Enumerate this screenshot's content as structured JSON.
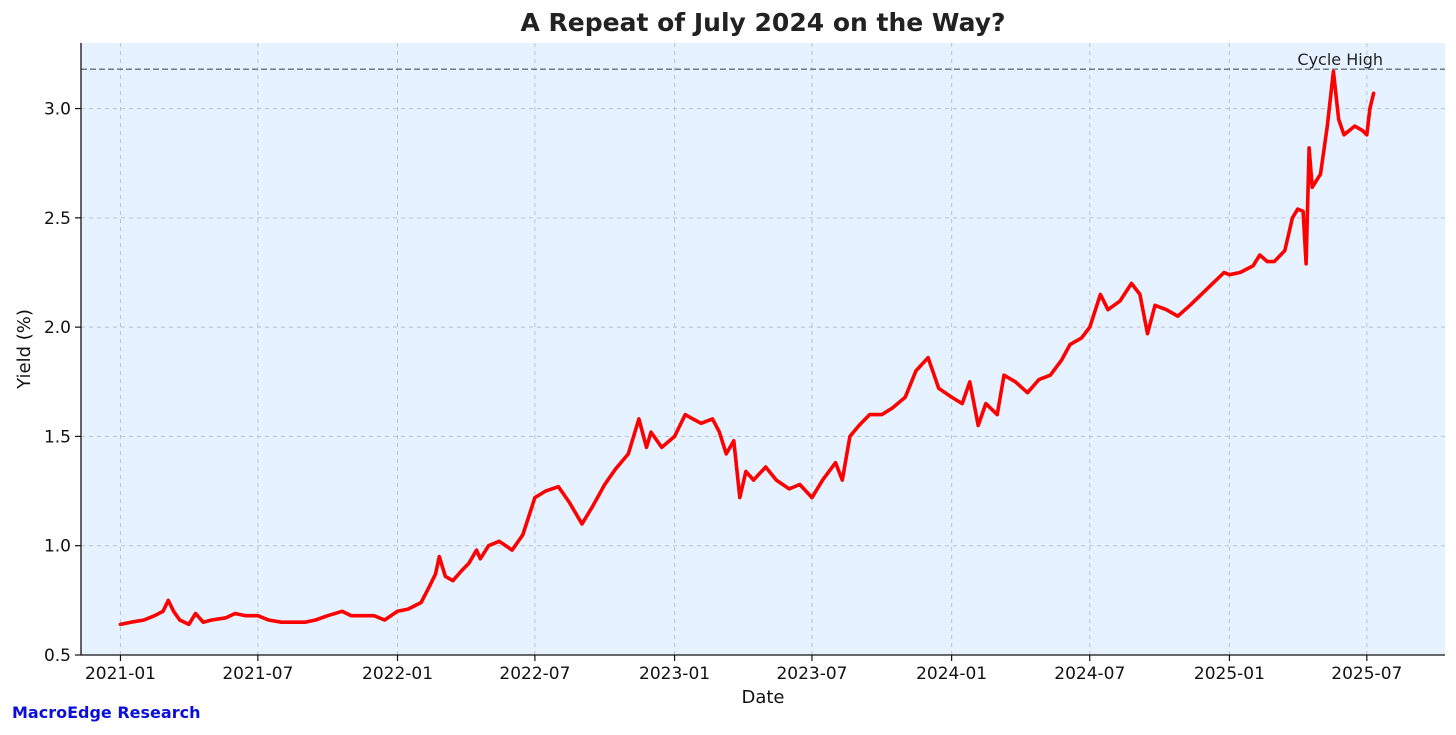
{
  "chart_data": {
    "type": "line",
    "title": "A Repeat of July 2024 on the Way?",
    "xlabel": "Date",
    "ylabel": "Yield (%)",
    "x_range": [
      "2020-11-10",
      "2025-10-12"
    ],
    "ylim": [
      0.5,
      3.3
    ],
    "y_ticks": [
      0.5,
      1.0,
      1.5,
      2.0,
      2.5,
      3.0
    ],
    "y_tick_labels": [
      "0.5",
      "1.0",
      "1.5",
      "2.0",
      "2.5",
      "3.0"
    ],
    "x_ticks": [
      "2021-01-01",
      "2021-07-01",
      "2022-01-01",
      "2022-07-01",
      "2023-01-01",
      "2023-07-01",
      "2024-01-01",
      "2024-07-01",
      "2025-01-01",
      "2025-07-01"
    ],
    "x_tick_labels": [
      "2021-01",
      "2021-07",
      "2022-01",
      "2022-07",
      "2023-01",
      "2023-07",
      "2024-01",
      "2024-07",
      "2025-01",
      "2025-07"
    ],
    "grid": true,
    "legend": "none",
    "plot_background": "#e6f2ff",
    "series": [
      {
        "color": "#ff0000",
        "points": [
          [
            "2021-01-01",
            0.64
          ],
          [
            "2021-01-15",
            0.65
          ],
          [
            "2021-02-01",
            0.66
          ],
          [
            "2021-02-15",
            0.68
          ],
          [
            "2021-02-26",
            0.7
          ],
          [
            "2021-03-05",
            0.75
          ],
          [
            "2021-03-12",
            0.7
          ],
          [
            "2021-03-20",
            0.66
          ],
          [
            "2021-04-01",
            0.64
          ],
          [
            "2021-04-10",
            0.69
          ],
          [
            "2021-04-20",
            0.65
          ],
          [
            "2021-05-01",
            0.66
          ],
          [
            "2021-05-20",
            0.67
          ],
          [
            "2021-06-01",
            0.69
          ],
          [
            "2021-06-15",
            0.68
          ],
          [
            "2021-07-01",
            0.68
          ],
          [
            "2021-07-15",
            0.66
          ],
          [
            "2021-08-01",
            0.65
          ],
          [
            "2021-08-15",
            0.65
          ],
          [
            "2021-09-01",
            0.65
          ],
          [
            "2021-09-15",
            0.66
          ],
          [
            "2021-10-01",
            0.68
          ],
          [
            "2021-10-20",
            0.7
          ],
          [
            "2021-11-01",
            0.68
          ],
          [
            "2021-11-15",
            0.68
          ],
          [
            "2021-12-01",
            0.68
          ],
          [
            "2021-12-15",
            0.66
          ],
          [
            "2022-01-01",
            0.7
          ],
          [
            "2022-01-15",
            0.71
          ],
          [
            "2022-02-01",
            0.74
          ],
          [
            "2022-02-10",
            0.8
          ],
          [
            "2022-02-20",
            0.87
          ],
          [
            "2022-02-25",
            0.95
          ],
          [
            "2022-03-05",
            0.86
          ],
          [
            "2022-03-15",
            0.84
          ],
          [
            "2022-03-25",
            0.88
          ],
          [
            "2022-04-05",
            0.92
          ],
          [
            "2022-04-15",
            0.98
          ],
          [
            "2022-04-20",
            0.94
          ],
          [
            "2022-05-01",
            1.0
          ],
          [
            "2022-05-15",
            1.02
          ],
          [
            "2022-06-01",
            0.98
          ],
          [
            "2022-06-15",
            1.05
          ],
          [
            "2022-07-01",
            1.22
          ],
          [
            "2022-07-15",
            1.25
          ],
          [
            "2022-08-01",
            1.27
          ],
          [
            "2022-08-15",
            1.2
          ],
          [
            "2022-09-01",
            1.1
          ],
          [
            "2022-09-15",
            1.18
          ],
          [
            "2022-10-01",
            1.28
          ],
          [
            "2022-10-15",
            1.35
          ],
          [
            "2022-11-01",
            1.42
          ],
          [
            "2022-11-15",
            1.58
          ],
          [
            "2022-11-25",
            1.45
          ],
          [
            "2022-12-01",
            1.52
          ],
          [
            "2022-12-15",
            1.45
          ],
          [
            "2023-01-01",
            1.5
          ],
          [
            "2023-01-15",
            1.6
          ],
          [
            "2023-01-25",
            1.58
          ],
          [
            "2023-02-05",
            1.56
          ],
          [
            "2023-02-20",
            1.58
          ],
          [
            "2023-03-01",
            1.52
          ],
          [
            "2023-03-10",
            1.42
          ],
          [
            "2023-03-20",
            1.48
          ],
          [
            "2023-03-28",
            1.22
          ],
          [
            "2023-04-05",
            1.34
          ],
          [
            "2023-04-15",
            1.3
          ],
          [
            "2023-05-01",
            1.36
          ],
          [
            "2023-05-15",
            1.3
          ],
          [
            "2023-06-01",
            1.26
          ],
          [
            "2023-06-15",
            1.28
          ],
          [
            "2023-07-01",
            1.22
          ],
          [
            "2023-07-15",
            1.3
          ],
          [
            "2023-08-01",
            1.38
          ],
          [
            "2023-08-10",
            1.3
          ],
          [
            "2023-08-20",
            1.5
          ],
          [
            "2023-09-01",
            1.55
          ],
          [
            "2023-09-15",
            1.6
          ],
          [
            "2023-10-01",
            1.6
          ],
          [
            "2023-10-15",
            1.63
          ],
          [
            "2023-11-01",
            1.68
          ],
          [
            "2023-11-15",
            1.8
          ],
          [
            "2023-12-01",
            1.86
          ],
          [
            "2023-12-15",
            1.72
          ],
          [
            "2024-01-01",
            1.68
          ],
          [
            "2024-01-15",
            1.65
          ],
          [
            "2024-01-25",
            1.75
          ],
          [
            "2024-02-05",
            1.55
          ],
          [
            "2024-02-15",
            1.65
          ],
          [
            "2024-03-01",
            1.6
          ],
          [
            "2024-03-10",
            1.78
          ],
          [
            "2024-03-25",
            1.75
          ],
          [
            "2024-04-10",
            1.7
          ],
          [
            "2024-04-25",
            1.76
          ],
          [
            "2024-05-10",
            1.78
          ],
          [
            "2024-05-25",
            1.85
          ],
          [
            "2024-06-05",
            1.92
          ],
          [
            "2024-06-20",
            1.95
          ],
          [
            "2024-07-01",
            2.0
          ],
          [
            "2024-07-15",
            2.15
          ],
          [
            "2024-07-25",
            2.08
          ],
          [
            "2024-08-10",
            2.12
          ],
          [
            "2024-08-25",
            2.2
          ],
          [
            "2024-09-05",
            2.15
          ],
          [
            "2024-09-15",
            1.97
          ],
          [
            "2024-09-25",
            2.1
          ],
          [
            "2024-10-10",
            2.08
          ],
          [
            "2024-10-25",
            2.05
          ],
          [
            "2024-11-10",
            2.1
          ],
          [
            "2024-11-25",
            2.15
          ],
          [
            "2024-12-10",
            2.2
          ],
          [
            "2024-12-25",
            2.25
          ],
          [
            "2025-01-01",
            2.24
          ],
          [
            "2025-01-15",
            2.25
          ],
          [
            "2025-02-01",
            2.28
          ],
          [
            "2025-02-10",
            2.33
          ],
          [
            "2025-02-20",
            2.3
          ],
          [
            "2025-03-01",
            2.3
          ],
          [
            "2025-03-15",
            2.35
          ],
          [
            "2025-03-25",
            2.5
          ],
          [
            "2025-04-01",
            2.54
          ],
          [
            "2025-04-08",
            2.53
          ],
          [
            "2025-04-12",
            2.29
          ],
          [
            "2025-04-16",
            2.82
          ],
          [
            "2025-04-20",
            2.64
          ],
          [
            "2025-05-01",
            2.7
          ],
          [
            "2025-05-10",
            2.92
          ],
          [
            "2025-05-18",
            3.17
          ],
          [
            "2025-05-25",
            2.95
          ],
          [
            "2025-06-01",
            2.88
          ],
          [
            "2025-06-15",
            2.92
          ],
          [
            "2025-06-25",
            2.9
          ],
          [
            "2025-07-01",
            2.88
          ],
          [
            "2025-07-05",
            3.0
          ],
          [
            "2025-07-10",
            3.07
          ]
        ]
      }
    ],
    "annotations": [
      {
        "label": "Cycle High",
        "y": 3.18,
        "style": "dashed-horizontal-line",
        "color": "#6e7c84"
      }
    ]
  },
  "footer": {
    "brand": "MacroEdge Research"
  }
}
